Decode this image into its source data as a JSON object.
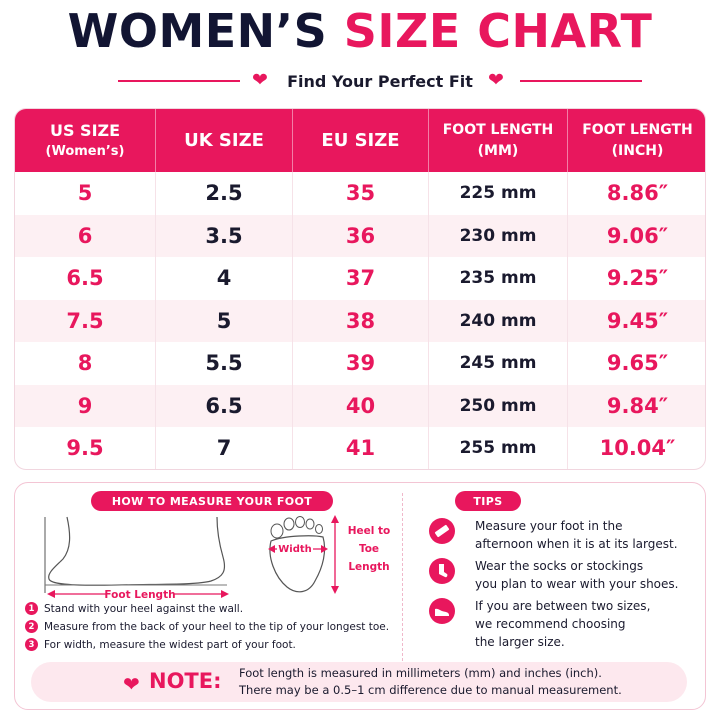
{
  "title": {
    "part1": "WOMEN’S",
    "part2": "SIZE CHART"
  },
  "subtitle": "Find Your Perfect Fit",
  "table": {
    "headers": [
      {
        "line1": "US SIZE",
        "line2": "(Women’s)"
      },
      {
        "line1": "UK SIZE",
        "line2": ""
      },
      {
        "line1": "EU SIZE",
        "line2": ""
      },
      {
        "line1": "FOOT LENGTH",
        "line2": "(MM)"
      },
      {
        "line1": "FOOT LENGTH",
        "line2": "(INCH)"
      }
    ],
    "rows": [
      [
        "5",
        "2.5",
        "35",
        "225 mm",
        "8.86″"
      ],
      [
        "6",
        "3.5",
        "36",
        "230 mm",
        "9.06″"
      ],
      [
        "6.5",
        "4",
        "37",
        "235 mm",
        "9.25″"
      ],
      [
        "7.5",
        "5",
        "38",
        "240 mm",
        "9.45″"
      ],
      [
        "8",
        "5.5",
        "39",
        "245 mm",
        "9.65″"
      ],
      [
        "9",
        "6.5",
        "40",
        "250 mm",
        "9.84″"
      ],
      [
        "9.5",
        "7",
        "41",
        "255 mm",
        "10.04″"
      ]
    ]
  },
  "measure": {
    "heading": "HOW TO MEASURE YOUR FOOT",
    "foot_length_label": "Foot Length",
    "width_label": "Width",
    "heel_to_toe_label": [
      "Heel to",
      "Toe",
      "Length"
    ],
    "steps": [
      {
        "num": "1",
        "text": "Stand with your heel against the wall."
      },
      {
        "num": "2",
        "text": "Measure from the back of your heel to the tip of your longest toe."
      },
      {
        "num": "3",
        "text": "For width, measure the widest part of your foot."
      }
    ]
  },
  "tips": {
    "heading": "TIPS",
    "items": [
      {
        "icon": "ruler-icon",
        "lines": [
          "Measure your foot in the",
          "afternoon when it is at its largest."
        ]
      },
      {
        "icon": "sock-icon",
        "lines": [
          "Wear the socks or stockings",
          "you plan to wear with your shoes."
        ]
      },
      {
        "icon": "shoe-icon",
        "lines": [
          "If you are between two sizes,",
          "we recommend choosing",
          "the larger size."
        ]
      }
    ]
  },
  "note": {
    "label": "NOTE:",
    "lines": [
      "Foot length is measured in millimeters (mm) and inches (inch).",
      "There may be a 0.5–1 cm difference due to manual measurement."
    ]
  },
  "colors": {
    "accent": "#e8175d",
    "dark": "#121533",
    "row_alt": "#fdf0f3",
    "note_bg": "#fde8ee"
  }
}
